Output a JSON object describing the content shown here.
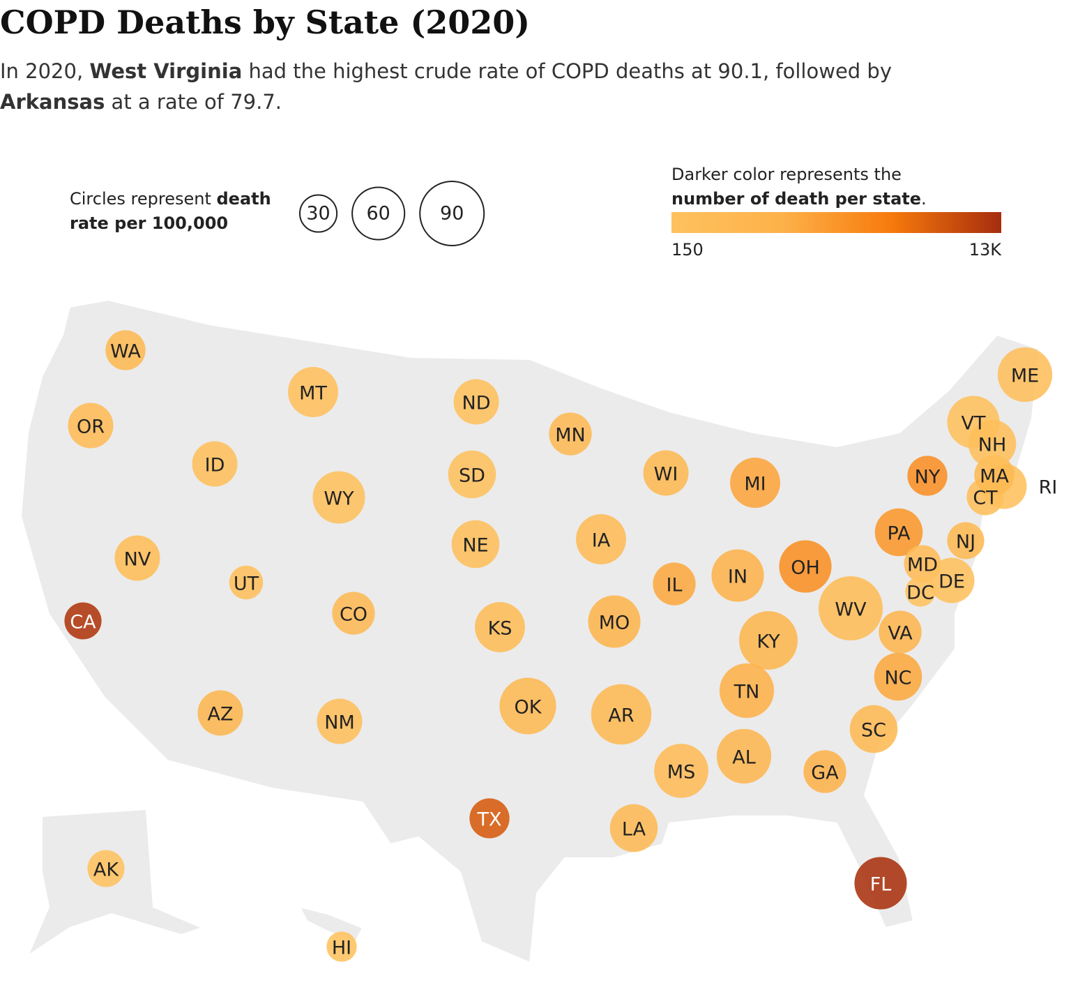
{
  "header": {
    "title": "COPD Deaths by State (2020)",
    "subtitle": [
      {
        "text": "In 2020, ",
        "bold": false
      },
      {
        "text": "West Virginia",
        "bold": true
      },
      {
        "text": " had the highest crude rate of COPD deaths at 90.1, followed by ",
        "bold": false
      },
      {
        "text": "Arkansas",
        "bold": true
      },
      {
        "text": " at a rate of 79.7.",
        "bold": false
      }
    ]
  },
  "legend": {
    "size": {
      "text": [
        {
          "text": "Circles represent ",
          "bold": false
        },
        {
          "text": "death",
          "bold": true
        },
        {
          "text": "rate per 100,000",
          "bold": true
        }
      ],
      "values": [
        30,
        60,
        90
      ]
    },
    "color": {
      "text": [
        {
          "text": "Darker color represents the",
          "bold": false
        },
        {
          "text": "number of death per state",
          "bold": true
        },
        {
          "text": ".",
          "bold": false
        }
      ],
      "range": [
        150,
        13000
      ],
      "ticks": [
        150,
        {
          "value": 13000,
          "label": "13K"
        }
      ],
      "colors": [
        "#fec15e",
        "#fdb24a",
        "#f77a0c",
        "#a52d0e"
      ]
    }
  },
  "states": [
    {
      "abbr": "WA",
      "rate": 35,
      "deaths": 2700
    },
    {
      "abbr": "OR",
      "rate": 45,
      "deaths": 1900
    },
    {
      "abbr": "CA",
      "rate": 30,
      "deaths": 12500
    },
    {
      "abbr": "NV",
      "rate": 45,
      "deaths": 1400
    },
    {
      "abbr": "ID",
      "rate": 45,
      "deaths": 800
    },
    {
      "abbr": "MT",
      "rate": 55,
      "deaths": 600
    },
    {
      "abbr": "WY",
      "rate": 60,
      "deaths": 350
    },
    {
      "abbr": "UT",
      "rate": 25,
      "deaths": 800
    },
    {
      "abbr": "CO",
      "rate": 40,
      "deaths": 2300
    },
    {
      "abbr": "AZ",
      "rate": 45,
      "deaths": 3200
    },
    {
      "abbr": "NM",
      "rate": 45,
      "deaths": 950
    },
    {
      "abbr": "ND",
      "rate": 45,
      "deaths": 350
    },
    {
      "abbr": "SD",
      "rate": 50,
      "deaths": 450
    },
    {
      "abbr": "NE",
      "rate": 50,
      "deaths": 980
    },
    {
      "abbr": "KS",
      "rate": 55,
      "deaths": 1600
    },
    {
      "abbr": "OK",
      "rate": 70,
      "deaths": 2800
    },
    {
      "abbr": "TX",
      "rate": 35,
      "deaths": 10500
    },
    {
      "abbr": "MN",
      "rate": 40,
      "deaths": 2300
    },
    {
      "abbr": "IA",
      "rate": 55,
      "deaths": 1750
    },
    {
      "abbr": "MO",
      "rate": 60,
      "deaths": 3700
    },
    {
      "abbr": "AR",
      "rate": 79.7,
      "deaths": 2400
    },
    {
      "abbr": "LA",
      "rate": 50,
      "deaths": 2300
    },
    {
      "abbr": "WI",
      "rate": 45,
      "deaths": 2650
    },
    {
      "abbr": "IL",
      "rate": 40,
      "deaths": 5100
    },
    {
      "abbr": "MI",
      "rate": 55,
      "deaths": 5500
    },
    {
      "abbr": "IN",
      "rate": 60,
      "deaths": 4100
    },
    {
      "abbr": "OH",
      "rate": 60,
      "deaths": 7100
    },
    {
      "abbr": "KY",
      "rate": 75,
      "deaths": 3400
    },
    {
      "abbr": "TN",
      "rate": 65,
      "deaths": 4500
    },
    {
      "abbr": "MS",
      "rate": 64,
      "deaths": 1900
    },
    {
      "abbr": "AL",
      "rate": 65,
      "deaths": 3250
    },
    {
      "abbr": "GA",
      "rate": 40,
      "deaths": 4300
    },
    {
      "abbr": "FL",
      "rate": 60,
      "deaths": 12800
    },
    {
      "abbr": "SC",
      "rate": 50,
      "deaths": 2550
    },
    {
      "abbr": "NC",
      "rate": 50,
      "deaths": 5200
    },
    {
      "abbr": "VA",
      "rate": 40,
      "deaths": 3450
    },
    {
      "abbr": "WV",
      "rate": 90.1,
      "deaths": 1610
    },
    {
      "abbr": "PA",
      "rate": 50,
      "deaths": 6500
    },
    {
      "abbr": "NY",
      "rate": 35,
      "deaths": 7000
    },
    {
      "abbr": "NJ",
      "rate": 30,
      "deaths": 2800
    },
    {
      "abbr": "MD",
      "rate": 30,
      "deaths": 1850
    },
    {
      "abbr": "DE",
      "rate": 45,
      "deaths": 450
    },
    {
      "abbr": "DC",
      "rate": 20,
      "deaths": 150
    },
    {
      "abbr": "CT",
      "rate": 30,
      "deaths": 1080
    },
    {
      "abbr": "RI",
      "rate": 45,
      "deaths": 490
    },
    {
      "abbr": "MA",
      "rate": 35,
      "deaths": 2450
    },
    {
      "abbr": "VT",
      "rate": 60,
      "deaths": 385
    },
    {
      "abbr": "NH",
      "rate": 50,
      "deaths": 690
    },
    {
      "abbr": "ME",
      "rate": 65,
      "deaths": 880
    },
    {
      "abbr": "AK",
      "rate": 30,
      "deaths": 220
    },
    {
      "abbr": "HI",
      "rate": 20,
      "deaths": 290
    }
  ]
}
